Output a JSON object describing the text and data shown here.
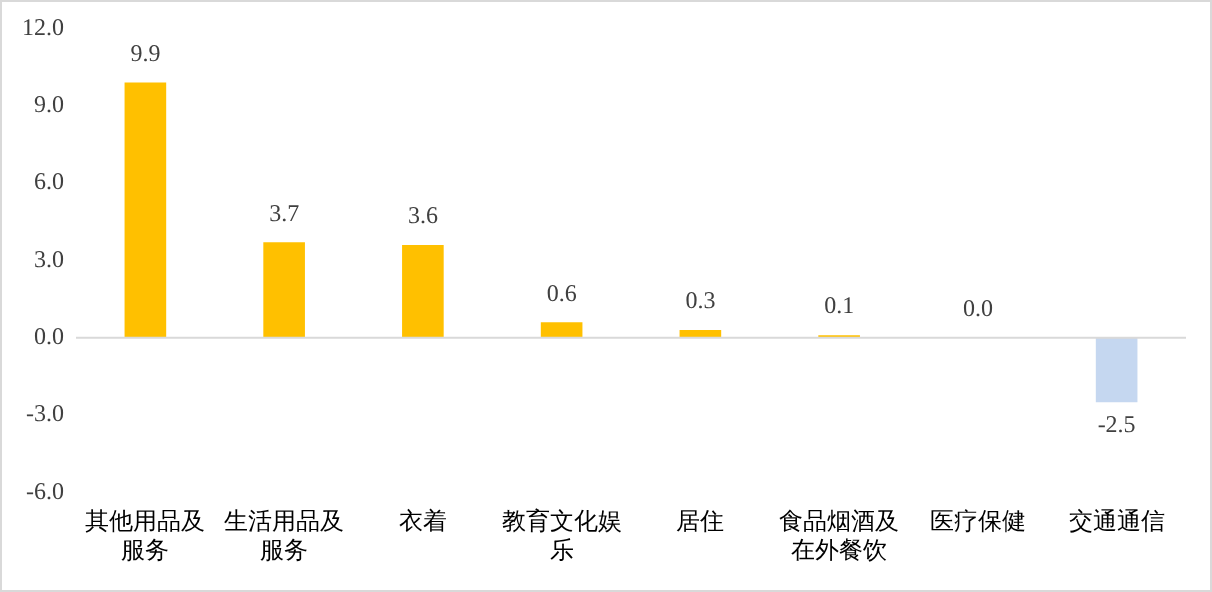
{
  "chart_data": {
    "type": "bar",
    "categories": [
      "其他用品及服务",
      "生活用品及服务",
      "衣着",
      "教育文化娱乐",
      "居住",
      "食品烟酒及在外餐饮",
      "医疗保健",
      "交通通信"
    ],
    "values": [
      9.9,
      3.7,
      3.6,
      0.6,
      0.3,
      0.1,
      0.0,
      -2.5
    ],
    "colors": [
      "#ffc000",
      "#ffc000",
      "#ffc000",
      "#ffc000",
      "#ffc000",
      "#ffc000",
      "#ffc000",
      "#c5d7f0"
    ],
    "value_labels": [
      "9.9",
      "3.7",
      "3.6",
      "0.6",
      "0.3",
      "0.1",
      "0.0",
      "-2.5"
    ],
    "ylim": [
      -6,
      12
    ],
    "yticks": [
      {
        "value": -6,
        "label": "-6.0"
      },
      {
        "value": -3,
        "label": "-3.0"
      },
      {
        "value": 0,
        "label": "0.0"
      },
      {
        "value": 3,
        "label": "3.0"
      },
      {
        "value": 6,
        "label": "6.0"
      },
      {
        "value": 9,
        "label": "9.0"
      },
      {
        "value": 12,
        "label": "12.0"
      }
    ],
    "ref_lines": [
      {
        "axis": "y",
        "value": 0,
        "color": "#d9d9d9"
      }
    ],
    "grid": false,
    "legend": false
  }
}
